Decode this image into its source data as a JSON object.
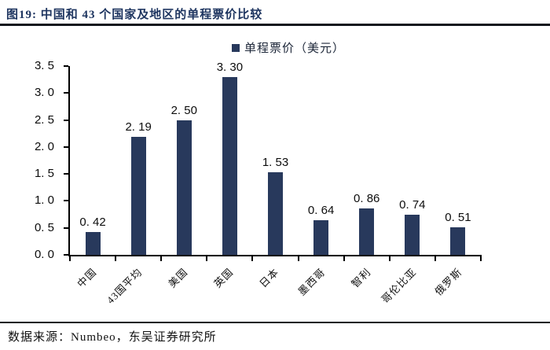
{
  "header": {
    "title": "图19:  中国和 43 个国家及地区的单程票价比较"
  },
  "chart_data": {
    "type": "bar",
    "title": "中国和 43 个国家及地区的单程票价比较",
    "figure_label": "图19",
    "legend": [
      "单程票价（美元）"
    ],
    "legend_position": "top-center",
    "categories": [
      "中国",
      "43国平均",
      "美国",
      "英国",
      "日本",
      "墨西哥",
      "智利",
      "哥伦比亚",
      "俄罗斯"
    ],
    "values": [
      0.42,
      2.19,
      2.5,
      3.3,
      1.53,
      0.64,
      0.86,
      0.74,
      0.51
    ],
    "value_labels": [
      "0. 42",
      "2. 19",
      "2. 50",
      "3. 30",
      "1. 53",
      "0. 64",
      "0. 86",
      "0. 74",
      "0. 51"
    ],
    "xlabel": "",
    "ylabel": "",
    "ylim": [
      0.0,
      3.5
    ],
    "y_ticks": [
      0.0,
      0.5,
      1.0,
      1.5,
      2.0,
      2.5,
      3.0,
      3.5
    ],
    "y_tick_labels": [
      "0. 0",
      "0. 5",
      "1. 0",
      "1. 5",
      "2. 0",
      "2. 5",
      "3. 0",
      "3. 5"
    ],
    "grid": false,
    "bar_color": "#28395c"
  },
  "footer": {
    "source": "数据来源：Numbeo，东吴证券研究所"
  },
  "colors": {
    "navy": "#28395c",
    "title": "#1e3560",
    "rule": "#10151d",
    "text": "#0d0d0d"
  }
}
